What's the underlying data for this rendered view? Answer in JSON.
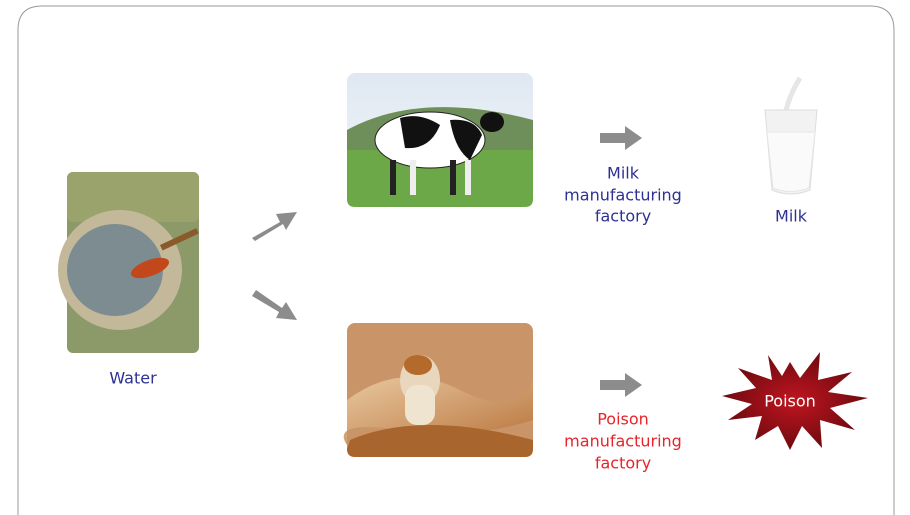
{
  "nodes": [
    {
      "label": "Water"
    },
    {
      "label": "Milk"
    },
    {
      "label": "Poison"
    }
  ],
  "processes": [
    {
      "label": [
        "Milk",
        "manufacturing",
        "factory"
      ]
    },
    {
      "label": [
        "Poison",
        "manufacturing",
        "factory"
      ]
    }
  ]
}
